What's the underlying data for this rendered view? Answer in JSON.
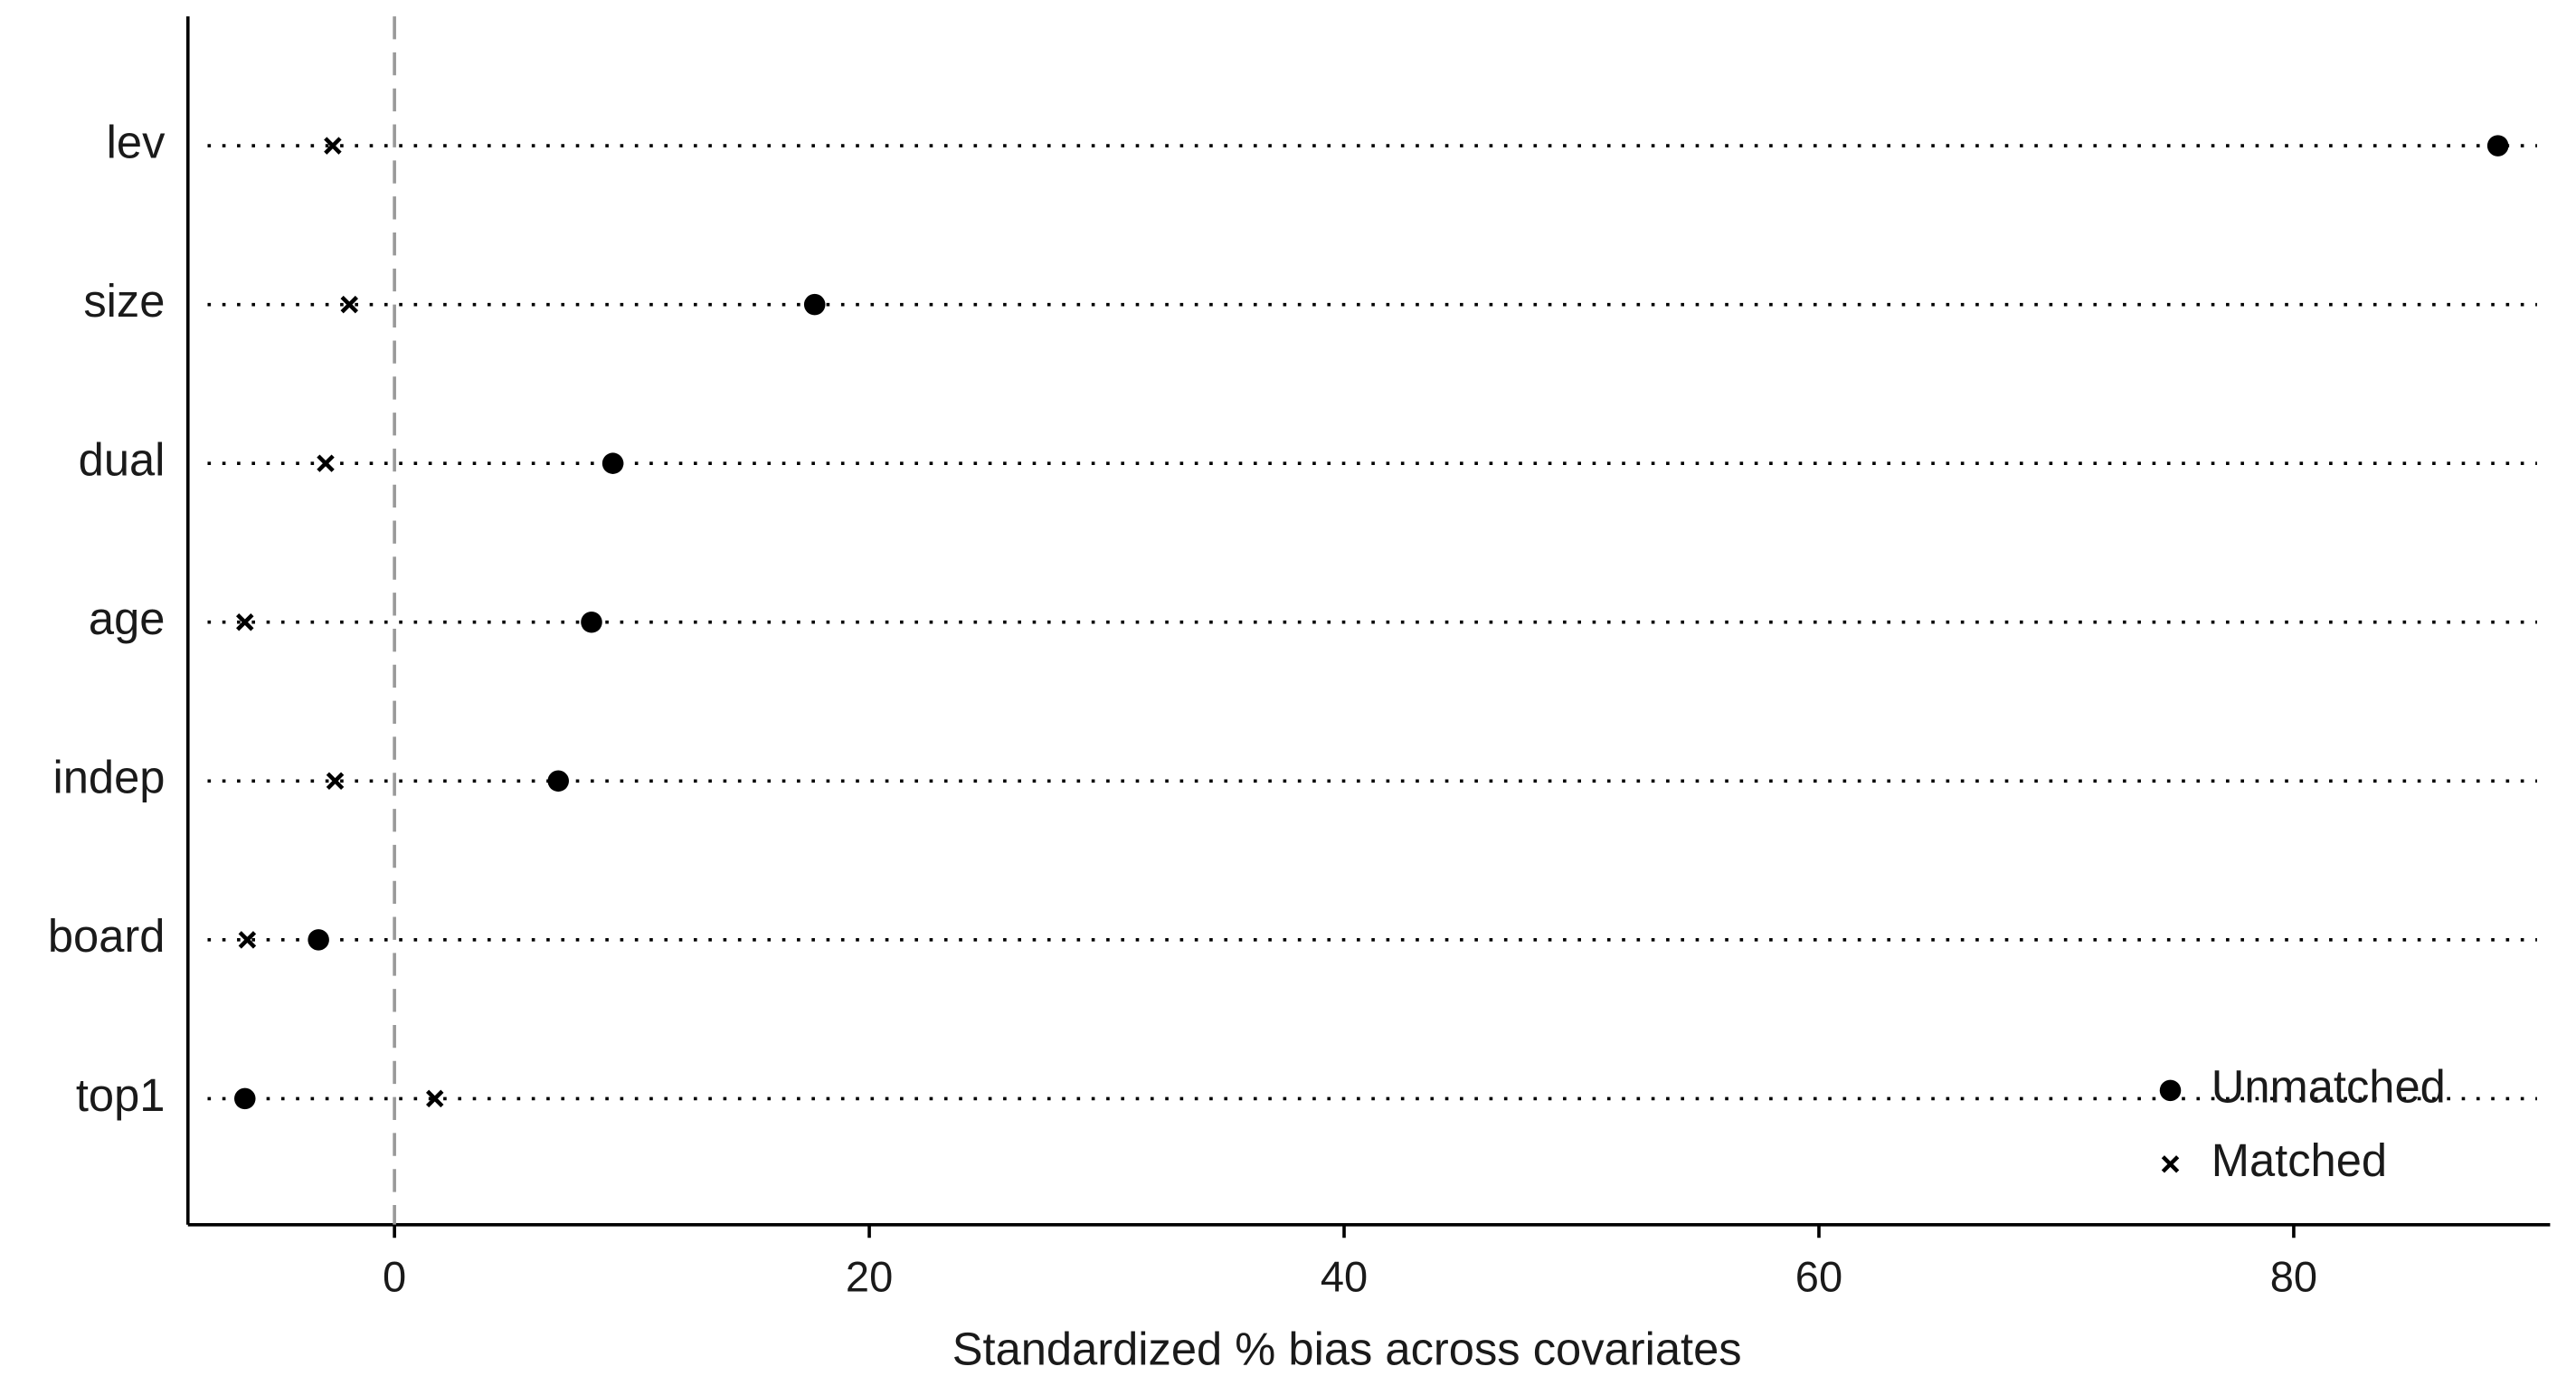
{
  "chart_data": {
    "type": "dot",
    "x_label": "Standardized % bias across covariates",
    "categories": [
      "lev",
      "size",
      "dual",
      "age",
      "indep",
      "board",
      "top1"
    ],
    "series": [
      {
        "name": "Unmatched",
        "marker": "circle",
        "color": "#000000",
        "values": [
          88.6,
          17.7,
          9.2,
          8.3,
          6.9,
          -3.2,
          -6.3
        ]
      },
      {
        "name": "Matched",
        "marker": "x",
        "color": "#000000",
        "values": [
          -2.6,
          -1.9,
          -2.9,
          -6.3,
          -2.5,
          -6.2,
          1.7
        ]
      }
    ],
    "xlim": [
      -8.7,
      90.8
    ],
    "xticks": [
      0,
      20,
      40,
      60,
      80
    ],
    "reference_line": 0,
    "legend": "bottom-right"
  }
}
